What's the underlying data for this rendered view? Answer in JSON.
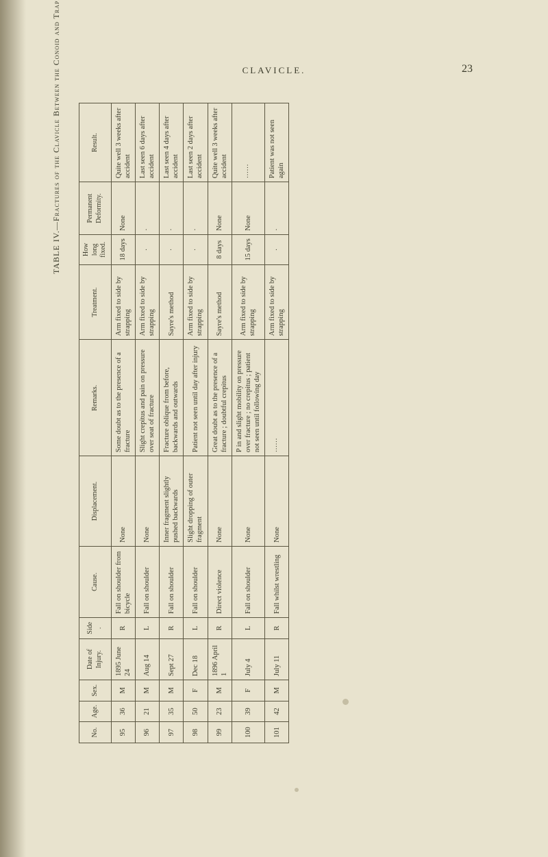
{
  "page": {
    "running_head": "CLAVICLE.",
    "number": "23",
    "vertical_title": "TABLE IV.—Fractures of the Clavicle Between the Conoid and Trapezoid Ligaments."
  },
  "columns": {
    "no": "No.",
    "age": "Age.",
    "sex": "Sex.",
    "date": "Date of Injury.",
    "side": "Side.",
    "cause": "Cause.",
    "displacement": "Displacement.",
    "remarks": "Remarks.",
    "treatment": "Treatment.",
    "howlong": "How long fixed.",
    "permanent": "Permanent Deformity.",
    "result": "Result."
  },
  "rows": [
    {
      "no": "95",
      "age": "36",
      "sex": "M",
      "date": "1895 June 24",
      "side": "R",
      "cause": "Fall on shoulder from bicycle",
      "displacement": "None",
      "remarks": "Some doubt as to the presence of a fracture",
      "treatment": "Arm fixed to side by strapping",
      "howlong": "18 days",
      "permanent": "None",
      "result": "Quite well 3 weeks after accident"
    },
    {
      "no": "96",
      "age": "21",
      "sex": "M",
      "date": "Aug 14",
      "side": "L",
      "cause": "Fall on shoulder",
      "displacement": "None",
      "remarks": "Slight crepitus and pain on pressure over seat of fracture",
      "treatment": "Arm fixed to side by strapping",
      "howlong": "·",
      "permanent": "·",
      "result": "Last seen 6 days after accident"
    },
    {
      "no": "97",
      "age": "35",
      "sex": "M",
      "date": "Sept 27",
      "side": "R",
      "cause": "Fall on shoulder",
      "displacement": "Inner fragment slightly pushed backwards",
      "remarks": "Fracture oblique from before, backwards and outwards",
      "treatment": "Sayre's method",
      "howlong": "·",
      "permanent": "·",
      "result": "Last seen 4 days after accident"
    },
    {
      "no": "98",
      "age": "50",
      "sex": "F",
      "date": "Dec 18",
      "side": "L",
      "cause": "Fall on shoulder",
      "displacement": "Slight dropping of outer fragment",
      "remarks": "Patient not seen until day after injury",
      "treatment": "Arm fixed to side by strapping",
      "howlong": "·",
      "permanent": "·",
      "result": "Last seen 2 days after accident"
    },
    {
      "no": "99",
      "age": "23",
      "sex": "M",
      "date": "1896 April 1",
      "side": "R",
      "cause": "Direct violence",
      "displacement": "None",
      "remarks": "Great doubt as to the presence of a fracture ; doubtful crepitus",
      "treatment": "Sayre's method",
      "howlong": "8 days",
      "permanent": "None",
      "result": "Quite well 3 weeks after accident"
    },
    {
      "no": "100",
      "age": "39",
      "sex": "F",
      "date": "July 4",
      "side": "L",
      "cause": "Fall on shoulder",
      "displacement": "None",
      "remarks": "P in and slight mobility on pressure over fracture ; no crepitus ; patient not seen until following day",
      "treatment": "Arm fixed to side by strapping",
      "howlong": "15 days",
      "permanent": "None",
      "result": "······"
    },
    {
      "no": "101",
      "age": "42",
      "sex": "M",
      "date": "July 11",
      "side": "R",
      "cause": "Fall whilst wrestling",
      "displacement": "None",
      "remarks": "······",
      "treatment": "Arm fixed to side by strapping",
      "howlong": "·",
      "permanent": "·",
      "result": "Patient was not seen again"
    }
  ]
}
